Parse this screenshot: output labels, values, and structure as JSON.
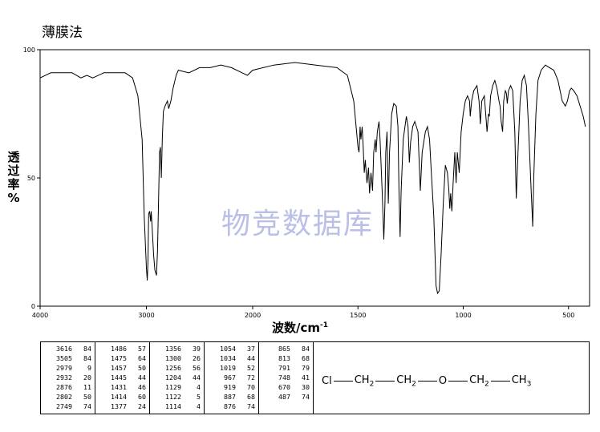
{
  "method_label": "薄膜法",
  "watermark": "物竞数据库",
  "chart_data": {
    "type": "line",
    "xlabel": "波数/cm",
    "xlabel_sup": "-1",
    "ylabel": "透过率%",
    "x_reversed": true,
    "xlim": [
      4000,
      400
    ],
    "ylim": [
      0,
      100
    ],
    "x_ticks": [
      4000,
      3000,
      2000,
      1500,
      1000,
      500
    ],
    "y_ticks": [
      0,
      50,
      100
    ],
    "line_color": "#000000",
    "series": [
      {
        "points": [
          [
            4000,
            89
          ],
          [
            3900,
            91
          ],
          [
            3700,
            91
          ],
          [
            3616,
            89
          ],
          [
            3560,
            90
          ],
          [
            3505,
            89
          ],
          [
            3400,
            91
          ],
          [
            3300,
            91
          ],
          [
            3200,
            91
          ],
          [
            3130,
            89
          ],
          [
            3080,
            82
          ],
          [
            3040,
            65
          ],
          [
            3020,
            35
          ],
          [
            3000,
            15
          ],
          [
            2992,
            10
          ],
          [
            2985,
            18
          ],
          [
            2979,
            36
          ],
          [
            2970,
            37
          ],
          [
            2960,
            33
          ],
          [
            2955,
            37
          ],
          [
            2945,
            30
          ],
          [
            2932,
            20
          ],
          [
            2920,
            14
          ],
          [
            2905,
            12
          ],
          [
            2895,
            22
          ],
          [
            2876,
            60
          ],
          [
            2868,
            62
          ],
          [
            2860,
            50
          ],
          [
            2850,
            66
          ],
          [
            2840,
            76
          ],
          [
            2825,
            78
          ],
          [
            2802,
            80
          ],
          [
            2790,
            77
          ],
          [
            2770,
            80
          ],
          [
            2749,
            85
          ],
          [
            2720,
            90
          ],
          [
            2700,
            92
          ],
          [
            2600,
            91
          ],
          [
            2500,
            93
          ],
          [
            2400,
            93
          ],
          [
            2300,
            94
          ],
          [
            2200,
            93
          ],
          [
            2100,
            91
          ],
          [
            2050,
            90
          ],
          [
            2000,
            92
          ],
          [
            1900,
            94
          ],
          [
            1800,
            95
          ],
          [
            1700,
            94
          ],
          [
            1600,
            93
          ],
          [
            1550,
            90
          ],
          [
            1520,
            80
          ],
          [
            1500,
            62
          ],
          [
            1495,
            60
          ],
          [
            1490,
            70
          ],
          [
            1486,
            65
          ],
          [
            1480,
            70
          ],
          [
            1475,
            62
          ],
          [
            1470,
            52
          ],
          [
            1465,
            57
          ],
          [
            1457,
            48
          ],
          [
            1450,
            54
          ],
          [
            1445,
            44
          ],
          [
            1438,
            52
          ],
          [
            1431,
            45
          ],
          [
            1425,
            60
          ],
          [
            1418,
            65
          ],
          [
            1414,
            60
          ],
          [
            1408,
            68
          ],
          [
            1400,
            72
          ],
          [
            1395,
            65
          ],
          [
            1385,
            45
          ],
          [
            1377,
            26
          ],
          [
            1372,
            40
          ],
          [
            1368,
            60
          ],
          [
            1362,
            68
          ],
          [
            1356,
            40
          ],
          [
            1350,
            60
          ],
          [
            1340,
            75
          ],
          [
            1330,
            79
          ],
          [
            1318,
            78
          ],
          [
            1310,
            70
          ],
          [
            1305,
            45
          ],
          [
            1300,
            27
          ],
          [
            1295,
            45
          ],
          [
            1285,
            65
          ],
          [
            1270,
            74
          ],
          [
            1262,
            70
          ],
          [
            1256,
            56
          ],
          [
            1250,
            64
          ],
          [
            1240,
            70
          ],
          [
            1230,
            72
          ],
          [
            1215,
            68
          ],
          [
            1204,
            45
          ],
          [
            1195,
            60
          ],
          [
            1180,
            68
          ],
          [
            1170,
            70
          ],
          [
            1160,
            65
          ],
          [
            1150,
            50
          ],
          [
            1140,
            35
          ],
          [
            1129,
            8
          ],
          [
            1122,
            5
          ],
          [
            1114,
            6
          ],
          [
            1105,
            20
          ],
          [
            1095,
            40
          ],
          [
            1085,
            55
          ],
          [
            1075,
            52
          ],
          [
            1068,
            45
          ],
          [
            1064,
            38
          ],
          [
            1060,
            44
          ],
          [
            1054,
            37
          ],
          [
            1048,
            48
          ],
          [
            1040,
            60
          ],
          [
            1034,
            48
          ],
          [
            1028,
            60
          ],
          [
            1019,
            52
          ],
          [
            1010,
            68
          ],
          [
            1000,
            75
          ],
          [
            990,
            80
          ],
          [
            980,
            82
          ],
          [
            970,
            80
          ],
          [
            967,
            74
          ],
          [
            960,
            80
          ],
          [
            950,
            84
          ],
          [
            935,
            86
          ],
          [
            925,
            80
          ],
          [
            919,
            71
          ],
          [
            912,
            80
          ],
          [
            900,
            82
          ],
          [
            887,
            68
          ],
          [
            880,
            75
          ],
          [
            876,
            74
          ],
          [
            870,
            82
          ],
          [
            860,
            86
          ],
          [
            850,
            88
          ],
          [
            840,
            85
          ],
          [
            830,
            80
          ],
          [
            825,
            78
          ],
          [
            820,
            72
          ],
          [
            813,
            68
          ],
          [
            808,
            80
          ],
          [
            800,
            84
          ],
          [
            795,
            83
          ],
          [
            791,
            79
          ],
          [
            785,
            84
          ],
          [
            775,
            86
          ],
          [
            765,
            84
          ],
          [
            755,
            68
          ],
          [
            748,
            42
          ],
          [
            740,
            60
          ],
          [
            730,
            80
          ],
          [
            720,
            88
          ],
          [
            710,
            90
          ],
          [
            700,
            86
          ],
          [
            690,
            70
          ],
          [
            680,
            50
          ],
          [
            672,
            35
          ],
          [
            670,
            31
          ],
          [
            665,
            50
          ],
          [
            655,
            75
          ],
          [
            645,
            88
          ],
          [
            630,
            92
          ],
          [
            610,
            94
          ],
          [
            590,
            93
          ],
          [
            570,
            92
          ],
          [
            550,
            88
          ],
          [
            530,
            80
          ],
          [
            515,
            78
          ],
          [
            505,
            80
          ],
          [
            495,
            84
          ],
          [
            487,
            85
          ],
          [
            475,
            84
          ],
          [
            460,
            82
          ],
          [
            445,
            78
          ],
          [
            430,
            74
          ],
          [
            420,
            70
          ]
        ]
      }
    ],
    "peak_table": [
      [
        [
          3616,
          84
        ],
        [
          3505,
          84
        ],
        [
          2979,
          9
        ],
        [
          2932,
          20
        ],
        [
          2876,
          11
        ],
        [
          2802,
          50
        ],
        [
          2749,
          74
        ]
      ],
      [
        [
          1486,
          57
        ],
        [
          1475,
          64
        ],
        [
          1457,
          50
        ],
        [
          1445,
          44
        ],
        [
          1431,
          46
        ],
        [
          1414,
          60
        ],
        [
          1377,
          24
        ]
      ],
      [
        [
          1356,
          39
        ],
        [
          1300,
          26
        ],
        [
          1256,
          56
        ],
        [
          1204,
          44
        ],
        [
          1129,
          4
        ],
        [
          1122,
          5
        ],
        [
          1114,
          4
        ]
      ],
      [
        [
          1054,
          37
        ],
        [
          1034,
          44
        ],
        [
          1019,
          52
        ],
        [
          967,
          72
        ],
        [
          919,
          70
        ],
        [
          887,
          68
        ],
        [
          876,
          74
        ]
      ],
      [
        [
          865,
          84
        ],
        [
          813,
          68
        ],
        [
          791,
          79
        ],
        [
          748,
          41
        ],
        [
          670,
          30
        ],
        [
          487,
          74
        ]
      ]
    ]
  },
  "structure": {
    "atom1": "Cl",
    "group1": "CH",
    "group2": "CH",
    "atom2": "O",
    "group3": "CH",
    "group4": "CH",
    "sub2": "2",
    "sub3": "3"
  }
}
